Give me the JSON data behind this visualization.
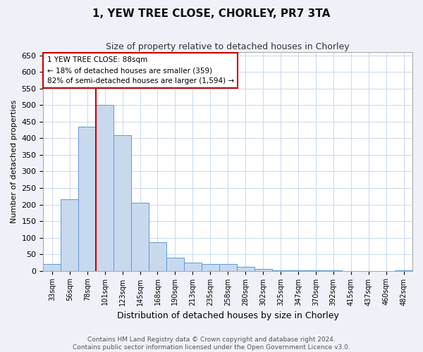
{
  "title_line1": "1, YEW TREE CLOSE, CHORLEY, PR7 3TA",
  "title_line2": "Size of property relative to detached houses in Chorley",
  "xlabel": "Distribution of detached houses by size in Chorley",
  "ylabel": "Number of detached properties",
  "categories": [
    "33sqm",
    "56sqm",
    "78sqm",
    "101sqm",
    "123sqm",
    "145sqm",
    "168sqm",
    "190sqm",
    "213sqm",
    "235sqm",
    "258sqm",
    "280sqm",
    "302sqm",
    "325sqm",
    "347sqm",
    "370sqm",
    "392sqm",
    "415sqm",
    "437sqm",
    "460sqm",
    "482sqm"
  ],
  "values": [
    20,
    215,
    435,
    500,
    410,
    205,
    87,
    40,
    25,
    20,
    20,
    12,
    5,
    1,
    1,
    1,
    1,
    0,
    0,
    0,
    2
  ],
  "bar_color": "#c8d9ee",
  "bar_edge_color": "#5b9bd5",
  "vline_color": "#cc0000",
  "annotation_text": "1 YEW TREE CLOSE: 88sqm\n← 18% of detached houses are smaller (359)\n82% of semi-detached houses are larger (1,594) →",
  "annotation_box_color": "#ffffff",
  "annotation_box_edge": "#cc0000",
  "ylim": [
    0,
    660
  ],
  "yticks": [
    0,
    50,
    100,
    150,
    200,
    250,
    300,
    350,
    400,
    450,
    500,
    550,
    600,
    650
  ],
  "footnote": "Contains HM Land Registry data © Crown copyright and database right 2024.\nContains public sector information licensed under the Open Government Licence v3.0.",
  "bg_color": "#eef2f8",
  "plot_bg_color": "#ffffff",
  "grid_color": "#c8d9ee"
}
